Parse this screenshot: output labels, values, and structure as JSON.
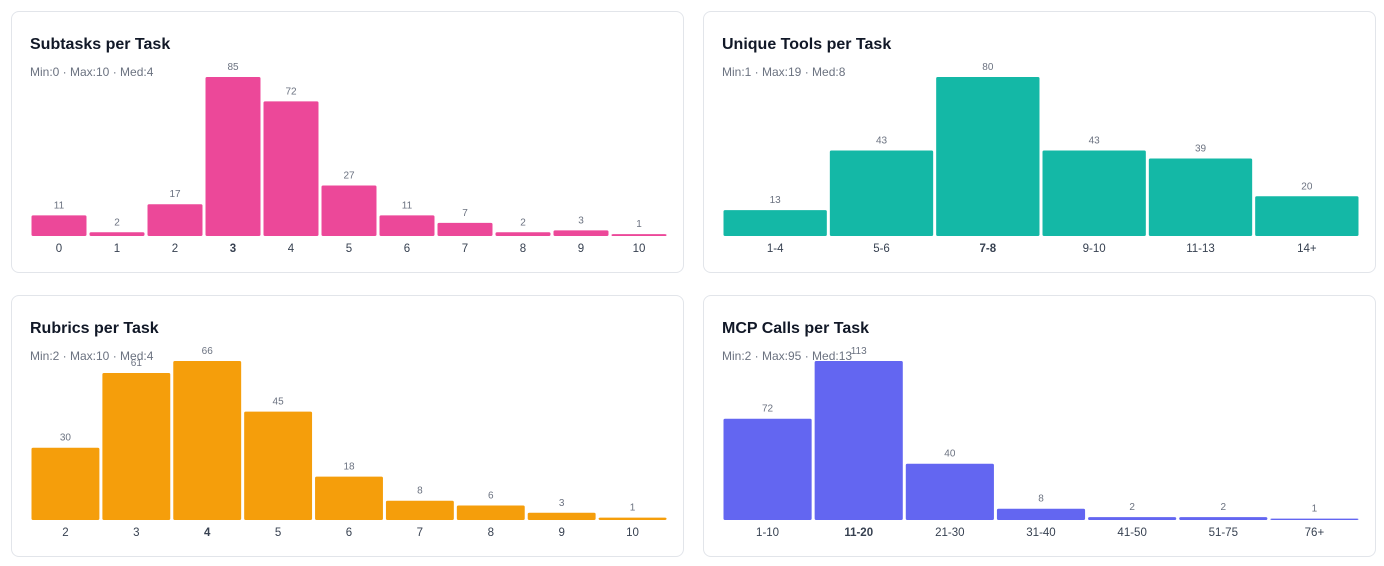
{
  "chart_data": [
    {
      "type": "bar",
      "title": "Subtasks per Task",
      "subtitle": "Min:0 · Max:10 · Med:4",
      "categories": [
        "0",
        "1",
        "2",
        "3",
        "4",
        "5",
        "6",
        "7",
        "8",
        "9",
        "10"
      ],
      "values": [
        11,
        2,
        17,
        85,
        72,
        27,
        11,
        7,
        2,
        3,
        1
      ],
      "color": "#ec4899",
      "bold_index": 3
    },
    {
      "type": "bar",
      "title": "Unique Tools per Task",
      "subtitle": "Min:1 · Max:19 · Med:8",
      "categories": [
        "1-4",
        "5-6",
        "7-8",
        "9-10",
        "11-13",
        "14+"
      ],
      "values": [
        13,
        43,
        80,
        43,
        39,
        20
      ],
      "color": "#14b8a6",
      "bold_index": 2
    },
    {
      "type": "bar",
      "title": "Rubrics per Task",
      "subtitle": "Min:2 · Max:10 · Med:4",
      "categories": [
        "2",
        "3",
        "4",
        "5",
        "6",
        "7",
        "8",
        "9",
        "10"
      ],
      "values": [
        30,
        61,
        66,
        45,
        18,
        8,
        6,
        3,
        1
      ],
      "color": "#f59e0b",
      "bold_index": 2
    },
    {
      "type": "bar",
      "title": "MCP Calls per Task",
      "subtitle": "Min:2 · Max:95 · Med:13",
      "categories": [
        "1-10",
        "11-20",
        "21-30",
        "31-40",
        "41-50",
        "51-75",
        "76+"
      ],
      "values": [
        72,
        113,
        40,
        8,
        2,
        2,
        1
      ],
      "color": "#6366f1",
      "bold_index": 1
    }
  ]
}
